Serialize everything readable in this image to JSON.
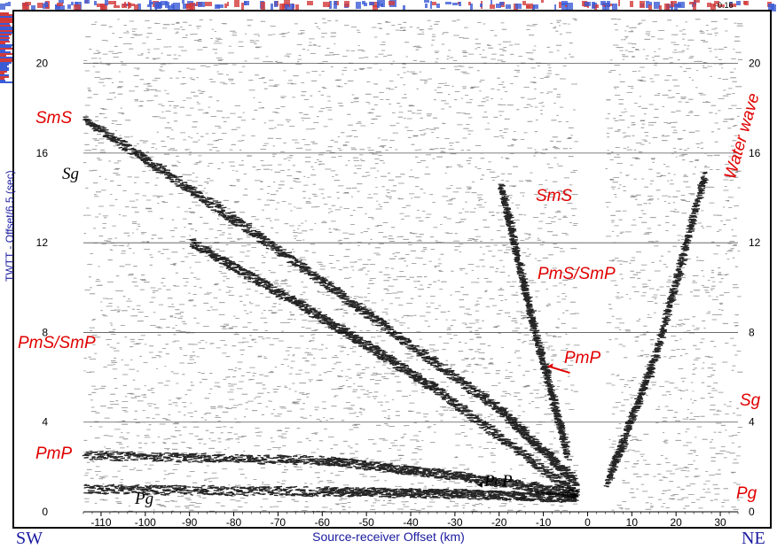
{
  "chart_data": {
    "type": "heatmap",
    "description_kind": "seismic record section",
    "xlabel": "Source-receiver Offset (km)",
    "ylabel": "TWTT - Offset/6.5 (sec)",
    "xlim": [
      -114,
      34
    ],
    "ylim": [
      0,
      22
    ],
    "xticks": [
      -110,
      -100,
      -90,
      -80,
      -70,
      -60,
      -50,
      -40,
      -30,
      -20,
      -10,
      0,
      10,
      20,
      30
    ],
    "yticks": [
      0,
      4,
      8,
      12,
      16,
      20
    ],
    "grid": "horizontal",
    "data_gap": [
      -3,
      4
    ],
    "phase_labels": [
      {
        "text": "SmS",
        "x": -108,
        "y": 17.8,
        "color": "red"
      },
      {
        "text": "Sg",
        "x": -107,
        "y": 15,
        "color": "black"
      },
      {
        "text": "SmS",
        "x": -14,
        "y": 13.7,
        "color": "red"
      },
      {
        "text": "PmS/SmP",
        "x": -13,
        "y": 10.1,
        "color": "red"
      },
      {
        "text": "PmS/SmP",
        "x": -107,
        "y": 7.4,
        "color": "red"
      },
      {
        "text": "PmP",
        "x": -6,
        "y": 6.5,
        "color": "red"
      },
      {
        "text": "PmP",
        "x": -110,
        "y": 2.4,
        "color": "red"
      },
      {
        "text": "PcP",
        "x": -24,
        "y": 1.2,
        "color": "black"
      },
      {
        "text": "Pg",
        "x": -98,
        "y": 0.4,
        "color": "black"
      },
      {
        "text": "Water wave",
        "x": 26,
        "y": 16,
        "color": "red"
      },
      {
        "text": "Sg",
        "x": 29,
        "y": 4.6,
        "color": "red"
      },
      {
        "text": "Pg",
        "x": 29,
        "y": 1.3,
        "color": "red"
      }
    ],
    "events": [
      {
        "name": "Pg",
        "points": [
          [
            -114,
            1.0
          ],
          [
            -60,
            0.9
          ],
          [
            -30,
            0.8
          ],
          [
            -3,
            0.6
          ]
        ]
      },
      {
        "name": "PmP",
        "points": [
          [
            -114,
            2.5
          ],
          [
            -60,
            2.3
          ],
          [
            -30,
            1.6
          ],
          [
            -3,
            0.8
          ]
        ]
      },
      {
        "name": "PmS/SmP",
        "points": [
          [
            -90,
            12
          ],
          [
            -60,
            8.6
          ],
          [
            -35,
            5.5
          ],
          [
            -3,
            0.8
          ]
        ]
      },
      {
        "name": "Sg",
        "points": [
          [
            -114,
            17.5
          ],
          [
            -80,
            13
          ],
          [
            -50,
            8.8
          ],
          [
            -20,
            4.5
          ],
          [
            -3,
            1.3
          ]
        ]
      },
      {
        "name": "SmS",
        "points": [
          [
            -20,
            14.5
          ],
          [
            -13,
            8.5
          ],
          [
            -5,
            2.5
          ]
        ]
      },
      {
        "name": "Water wave",
        "points": [
          [
            4,
            1.3
          ],
          [
            15,
            7
          ],
          [
            26,
            15
          ]
        ]
      }
    ]
  },
  "labels": {
    "smS_left": "SmS",
    "sg_left": "Sg",
    "smS_mid": "SmS",
    "pmssmp_mid": "PmS/SmP",
    "pmssmp_left": "PmS/SmP",
    "pmp_mid": "PmP",
    "pmp_left": "PmP",
    "pcp": "PcP",
    "pg_left": "Pg",
    "water": "Water wave",
    "sg_right": "Sg",
    "pg_right": "Pg"
  },
  "compass": {
    "left": "SW",
    "right": "NE"
  },
  "colorbar_label": "-0.16",
  "colors": {
    "phase_red": "#e00000",
    "axis_blue": "#1a1aa0",
    "strip_red": "#d23a3a",
    "strip_blue": "#3b5bd6"
  }
}
